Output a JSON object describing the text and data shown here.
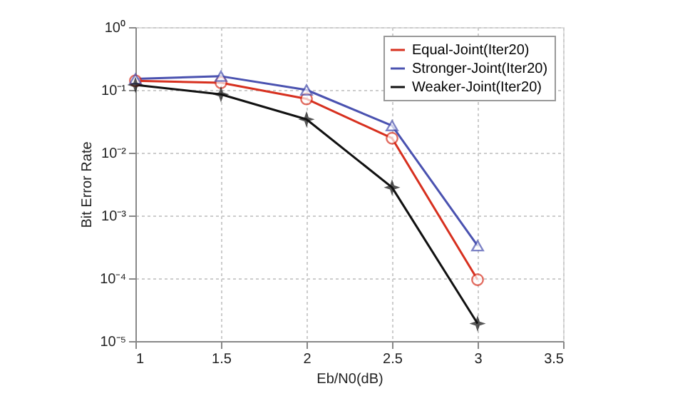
{
  "chart_data": {
    "type": "line",
    "xlabel": "Eb/N0(dB)",
    "ylabel": "Bit Error Rate",
    "log": "y",
    "grid": true,
    "legend": "top right",
    "line_style": "solid",
    "x": [
      1,
      1.5,
      2,
      2.5,
      3
    ],
    "xlim": [
      1,
      3.5
    ],
    "xticks": [
      1,
      1.5,
      2,
      2.5,
      3,
      3.5
    ],
    "ylim": [
      1e-05,
      1
    ],
    "yticks": [
      {
        "value": 1e-05,
        "label": "10⁻⁵"
      },
      {
        "value": 0.0001,
        "label": "10⁻⁴"
      },
      {
        "value": 0.001,
        "label": "10⁻³"
      },
      {
        "value": 0.01,
        "label": "10⁻²"
      },
      {
        "value": 0.1,
        "label": "10⁻¹"
      },
      {
        "value": 1,
        "label": "10⁰"
      }
    ],
    "series": [
      {
        "name": "Equal-Joint(Iter20)",
        "color": "#d7301f",
        "marker": "circle",
        "values": [
          0.14,
          0.13,
          0.072,
          0.017,
          9.5e-05
        ]
      },
      {
        "name": "Stronger-Joint(Iter20)",
        "color": "#4a52b0",
        "marker": "triangle",
        "values": [
          0.15,
          0.165,
          0.1,
          0.027,
          0.00033
        ]
      },
      {
        "name": "Weaker-Joint(Iter20)",
        "color": "#111111",
        "marker": "star",
        "values": [
          0.12,
          0.085,
          0.034,
          0.0028,
          1.9e-05
        ]
      }
    ]
  }
}
